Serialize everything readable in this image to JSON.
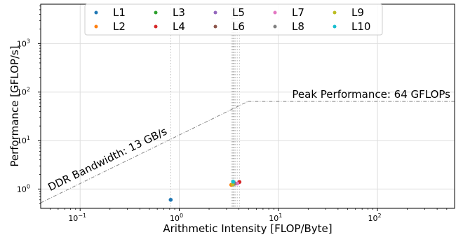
{
  "chart_data": {
    "type": "scatter",
    "xlabel": "Arithmetic Intensity [FLOP/Byte]",
    "ylabel": "Performance [GFLOP/s]",
    "x_scale": "log",
    "y_scale": "log",
    "xlim": [
      0.04,
      600
    ],
    "ylim": [
      0.4,
      6500
    ],
    "x_ticks": [
      {
        "value": 0.1,
        "base": "10",
        "exp": "−1"
      },
      {
        "value": 1,
        "base": "10",
        "exp": "0"
      },
      {
        "value": 10,
        "base": "10",
        "exp": "1"
      },
      {
        "value": 100,
        "base": "10",
        "exp": "2"
      }
    ],
    "y_ticks": [
      {
        "value": 1,
        "base": "10",
        "exp": "0"
      },
      {
        "value": 10,
        "base": "10",
        "exp": "1"
      },
      {
        "value": 100,
        "base": "10",
        "exp": "2"
      },
      {
        "value": 1000,
        "base": "10",
        "exp": "3"
      }
    ],
    "grid": true,
    "legend_position": "top-center",
    "roofline": {
      "bandwidth_label": "DDR Bandwidth: 13 GB/s",
      "peak_label": "Peak Performance: 64 GFLOPs",
      "bandwidth_gbs": 13,
      "peak_gflops": 64
    },
    "series": [
      {
        "name": "L1",
        "color": "#1f77b4",
        "x": 0.82,
        "y": 0.6
      },
      {
        "name": "L2",
        "color": "#ff7f0e",
        "x": 3.35,
        "y": 1.22
      },
      {
        "name": "L3",
        "color": "#2ca02c",
        "x": 3.5,
        "y": 1.3
      },
      {
        "name": "L4",
        "color": "#d62728",
        "x": 4.05,
        "y": 1.4
      },
      {
        "name": "L5",
        "color": "#9467bd",
        "x": 3.7,
        "y": 1.3
      },
      {
        "name": "L6",
        "color": "#8c564b",
        "x": 3.55,
        "y": 1.35
      },
      {
        "name": "L7",
        "color": "#e377c2",
        "x": 3.85,
        "y": 1.3
      },
      {
        "name": "L8",
        "color": "#7f7f7f",
        "x": 3.6,
        "y": 1.28
      },
      {
        "name": "L9",
        "color": "#bcbd22",
        "x": 3.45,
        "y": 1.25
      },
      {
        "name": "L10",
        "color": "#17becf",
        "x": 3.5,
        "y": 1.42
      }
    ]
  }
}
